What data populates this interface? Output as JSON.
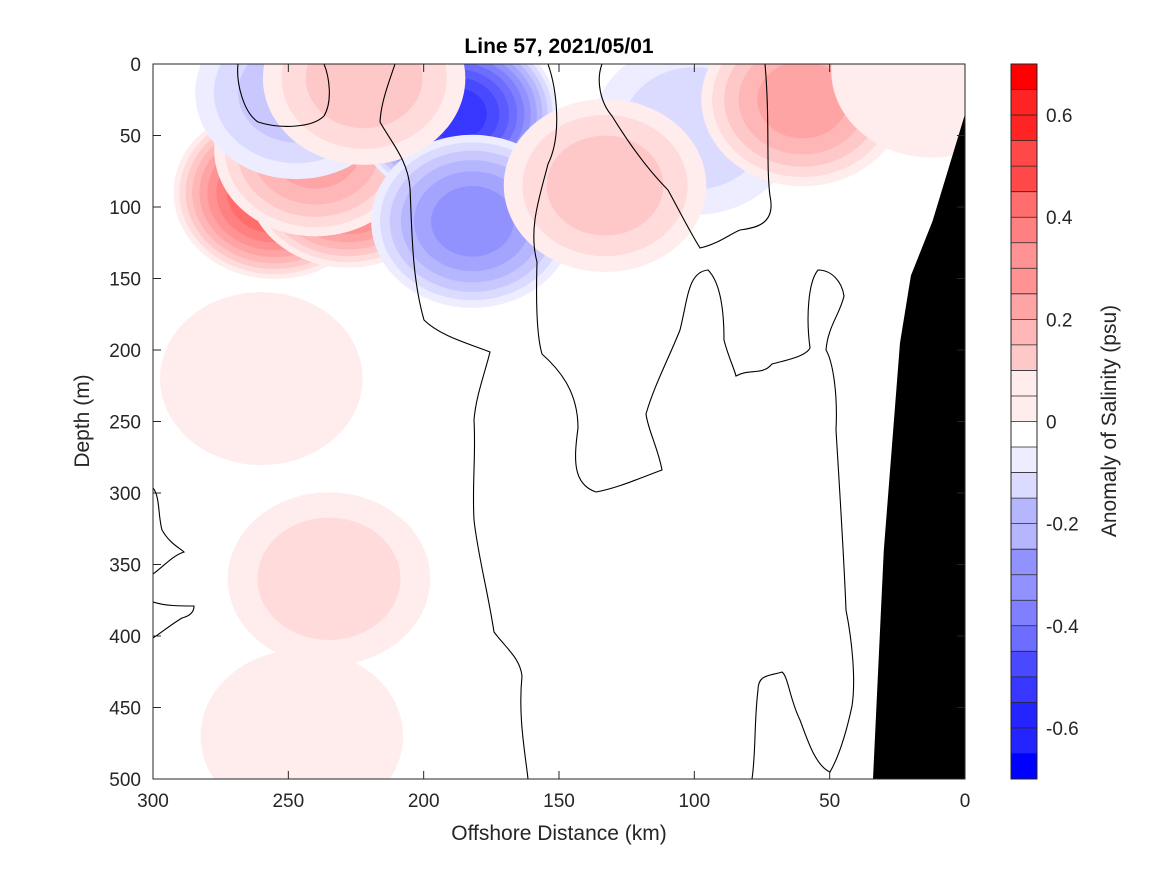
{
  "chart_data": {
    "type": "heatmap",
    "title": "Line 57, 2021/05/01",
    "xlabel": "Offshore Distance (km)",
    "ylabel": "Depth (m)",
    "colorbar_label": "Anomaly of Salinity (psu)",
    "xlim": [
      300,
      0
    ],
    "ylim": [
      500,
      0
    ],
    "x_reversed": true,
    "y_reversed": true,
    "x_ticks": [
      300,
      250,
      200,
      150,
      100,
      50,
      0
    ],
    "y_ticks": [
      0,
      50,
      100,
      150,
      200,
      250,
      300,
      350,
      400,
      450,
      500
    ],
    "colorbar": {
      "range": [
        -0.7,
        0.7
      ],
      "levels": 28,
      "ticks": [
        0.6,
        0.4,
        0.2,
        0,
        -0.2,
        -0.4,
        -0.6
      ],
      "tick_labels": [
        "0.6",
        "0.4",
        "0.2",
        "0",
        "-0.2",
        "-0.4",
        "-0.6"
      ],
      "colormap": "blue-white-red",
      "colors": {
        "negative_max": "#0000ff",
        "zero": "#ffffff",
        "positive_max": "#ff0000"
      }
    },
    "features": [
      {
        "type": "anomaly",
        "center_km": 255,
        "center_depth_m": 90,
        "peak_psu": 0.45
      },
      {
        "type": "anomaly",
        "center_km": 228,
        "center_depth_m": 82,
        "peak_psu": 0.4
      },
      {
        "type": "anomaly",
        "center_km": 240,
        "center_depth_m": 60,
        "peak_psu": 0.25
      },
      {
        "type": "anomaly",
        "center_km": 260,
        "center_depth_m": 220,
        "peak_psu": 0.06
      },
      {
        "type": "anomaly",
        "center_km": 235,
        "center_depth_m": 360,
        "peak_psu": 0.12
      },
      {
        "type": "anomaly",
        "center_km": 245,
        "center_depth_m": 470,
        "peak_psu": 0.07
      },
      {
        "type": "anomaly",
        "center_km": 188,
        "center_depth_m": 35,
        "peak_psu": -0.55
      },
      {
        "type": "anomaly",
        "center_km": 182,
        "center_depth_m": 110,
        "peak_psu": -0.3
      },
      {
        "type": "anomaly",
        "center_km": 247,
        "center_depth_m": 20,
        "peak_psu": -0.13
      },
      {
        "type": "anomaly",
        "center_km": 100,
        "center_depth_m": 45,
        "peak_psu": -0.1
      },
      {
        "type": "anomaly",
        "center_km": 133,
        "center_depth_m": 85,
        "peak_psu": 0.15
      },
      {
        "type": "anomaly",
        "center_km": 60,
        "center_depth_m": 25,
        "peak_psu": 0.25
      },
      {
        "type": "anomaly",
        "center_km": 12,
        "center_depth_m": 5,
        "peak_psu": 0.07
      },
      {
        "type": "anomaly",
        "center_km": 222,
        "center_depth_m": 10,
        "peak_psu": 0.15
      }
    ],
    "bathymetry": {
      "fill": "#000000",
      "profile_km_depth": [
        [
          0,
          35
        ],
        [
          4,
          60
        ],
        [
          8,
          85
        ],
        [
          12,
          110
        ],
        [
          20,
          148
        ],
        [
          24,
          195
        ],
        [
          30,
          340
        ],
        [
          34,
          500
        ]
      ]
    }
  }
}
